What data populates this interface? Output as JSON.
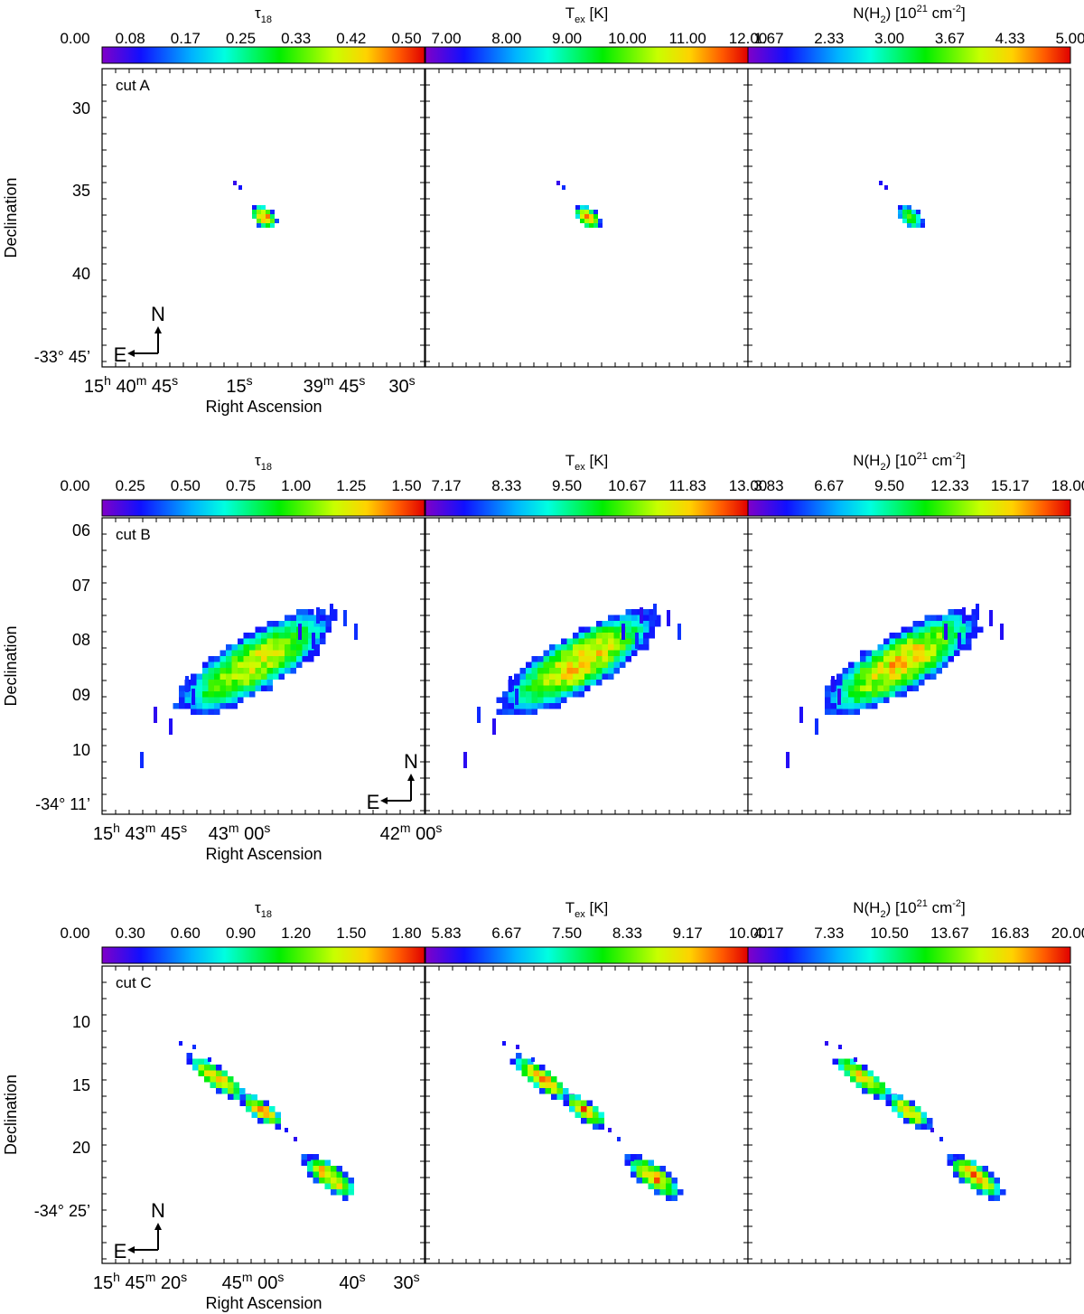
{
  "chart_data": [
    {
      "type": "heatmap",
      "title": "",
      "panels": [
        {
          "quantity": "τ18",
          "colorbar": {
            "label_main": "τ",
            "label_sub": "18",
            "label_rest": "",
            "label_sup": "",
            "label_tail": "",
            "range": [
              0.0,
              0.5
            ],
            "ticks": [
              "0.00",
              "0.08",
              "0.17",
              "0.25",
              "0.33",
              "0.42",
              "0.50"
            ]
          },
          "annotation": "cut A",
          "peak_fraction": 0.9
        },
        {
          "quantity": "Tex [K]",
          "colorbar": {
            "label_main": "T",
            "label_sub": "ex",
            "label_rest": " [K]",
            "label_sup": "",
            "label_tail": "",
            "range": [
              6.0,
              12.0
            ],
            "ticks": [
              "7.00",
              "8.00",
              "9.00",
              "10.00",
              "11.00",
              "12.00"
            ]
          },
          "annotation": "",
          "peak_fraction": 0.85
        },
        {
          "quantity": "N(H2) [10^21 cm^-2]",
          "colorbar": {
            "label_main": "N(H",
            "label_sub": "2",
            "label_rest": ") [10",
            "label_sup": "21",
            "label_tail": " cm",
            "label_sup2": "-2",
            "label_end": "]",
            "range": [
              1.0,
              5.0
            ],
            "ticks": [
              "1.67",
              "2.33",
              "3.00",
              "3.67",
              "4.33",
              "5.00"
            ]
          },
          "annotation": "",
          "peak_fraction": 0.6
        }
      ],
      "ylabel": "Declination",
      "xlabel": "Right Ascension",
      "yticks": [
        "30",
        "35",
        "40",
        "-33° 45’"
      ],
      "xticks": [
        {
          "h": "15",
          "hs": "h",
          "m": "40",
          "ms": "m",
          "s": "45",
          "ss": "s"
        },
        {
          "s": "15",
          "ss": "s"
        },
        {
          "m": "39",
          "ms": "m",
          "s": "45",
          "ss": "s"
        },
        {
          "s": "30",
          "ss": "s"
        }
      ],
      "compass": {
        "north": "N",
        "east": "E"
      }
    },
    {
      "type": "heatmap",
      "title": "",
      "panels": [
        {
          "quantity": "τ18",
          "colorbar": {
            "label_main": "τ",
            "label_sub": "18",
            "label_rest": "",
            "range": [
              0.0,
              1.5
            ],
            "ticks": [
              "0.00",
              "0.25",
              "0.50",
              "0.75",
              "1.00",
              "1.25",
              "1.50"
            ]
          },
          "annotation": "cut B",
          "peak_fraction": 0.75
        },
        {
          "quantity": "Tex [K]",
          "colorbar": {
            "label_main": "T",
            "label_sub": "ex",
            "label_rest": " [K]",
            "range": [
              6.0,
              13.0
            ],
            "ticks": [
              "7.17",
              "8.33",
              "9.50",
              "10.67",
              "11.83",
              "13.00"
            ]
          },
          "annotation": "",
          "peak_fraction": 0.8
        },
        {
          "quantity": "N(H2) [10^21 cm^-2]",
          "colorbar": {
            "label_main": "N(H",
            "label_sub": "2",
            "label_rest": ") [10",
            "label_sup": "21",
            "label_tail": " cm",
            "label_sup2": "-2",
            "label_end": "]",
            "range": [
              1.0,
              18.0
            ],
            "ticks": [
              "3.83",
              "6.67",
              "9.50",
              "12.33",
              "15.17",
              "18.00"
            ]
          },
          "annotation": "",
          "peak_fraction": 0.8
        }
      ],
      "ylabel": "Declination",
      "xlabel": "Right Ascension",
      "yticks": [
        "06",
        "07",
        "08",
        "09",
        "10",
        "-34° 11’"
      ],
      "xticks": [
        {
          "h": "15",
          "hs": "h",
          "m": "43",
          "ms": "m",
          "s": "45",
          "ss": "s"
        },
        {
          "m": "43",
          "ms": "m",
          "s": "00",
          "ss": "s"
        },
        {
          "m": "42",
          "ms": "m",
          "s": "00",
          "ss": "s"
        }
      ],
      "compass": {
        "north": "N",
        "east": "E"
      }
    },
    {
      "type": "heatmap",
      "title": "",
      "panels": [
        {
          "quantity": "τ18",
          "colorbar": {
            "label_main": "τ",
            "label_sub": "18",
            "label_rest": "",
            "range": [
              0.0,
              1.8
            ],
            "ticks": [
              "0.00",
              "0.30",
              "0.60",
              "0.90",
              "1.20",
              "1.50",
              "1.80"
            ]
          },
          "annotation": "cut C",
          "peak_fraction": 0.85
        },
        {
          "quantity": "Tex [K]",
          "colorbar": {
            "label_main": "T",
            "label_sub": "ex",
            "label_rest": " [K]",
            "range": [
              5.0,
              10.0
            ],
            "ticks": [
              "5.83",
              "6.67",
              "7.50",
              "8.33",
              "9.17",
              "10.00"
            ]
          },
          "annotation": "",
          "peak_fraction": 0.85
        },
        {
          "quantity": "N(H2) [10^21 cm^-2]",
          "colorbar": {
            "label_main": "N(H",
            "label_sub": "2",
            "label_rest": ") [10",
            "label_sup": "21",
            "label_tail": " cm",
            "label_sup2": "-2",
            "label_end": "]",
            "range": [
              1.0,
              20.0
            ],
            "ticks": [
              "4.17",
              "7.33",
              "10.50",
              "13.67",
              "16.83",
              "20.00"
            ]
          },
          "annotation": "",
          "peak_fraction": 0.85
        }
      ],
      "ylabel": "Declination",
      "xlabel": "Right Ascension",
      "yticks": [
        "10",
        "15",
        "20",
        "-34° 25’"
      ],
      "xticks": [
        {
          "h": "15",
          "hs": "h",
          "m": "45",
          "ms": "m",
          "s": "20",
          "ss": "s"
        },
        {
          "m": "45",
          "ms": "m",
          "s": "00",
          "ss": "s"
        },
        {
          "s": "40",
          "ss": "s"
        },
        {
          "s": "30",
          "ss": "s"
        }
      ],
      "compass": {
        "north": "N",
        "east": "E"
      }
    }
  ]
}
